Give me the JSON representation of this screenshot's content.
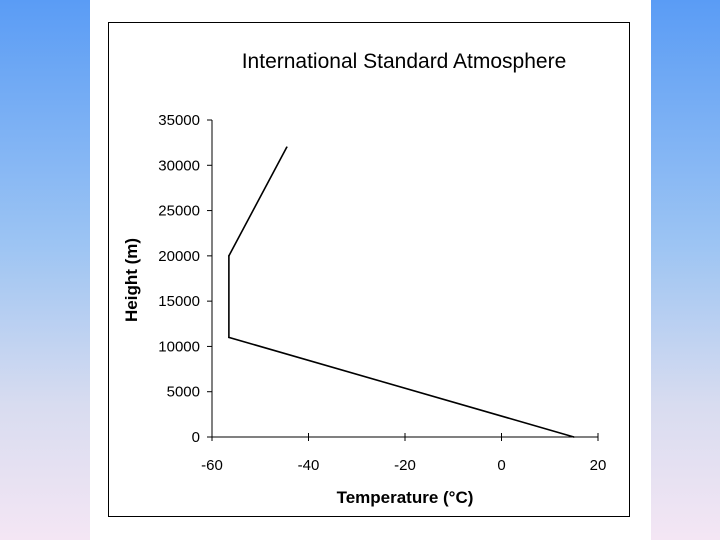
{
  "chart_data": {
    "type": "line",
    "title": "International Standard Atmosphere",
    "xlabel": "Temperature (°C)",
    "ylabel": "Height (m)",
    "xlim": [
      -60,
      20
    ],
    "ylim": [
      0,
      35000
    ],
    "xticks": [
      -60,
      -40,
      -20,
      0,
      20
    ],
    "yticks": [
      0,
      5000,
      10000,
      15000,
      20000,
      25000,
      30000,
      35000
    ],
    "grid": false,
    "series": [
      {
        "x": [
          15,
          -56.5,
          -56.5,
          -44.5
        ],
        "y": [
          0,
          11000,
          20000,
          32000
        ]
      }
    ]
  },
  "colors": {
    "line": "#000000",
    "axis": "#000000",
    "background": "#ffffff"
  }
}
